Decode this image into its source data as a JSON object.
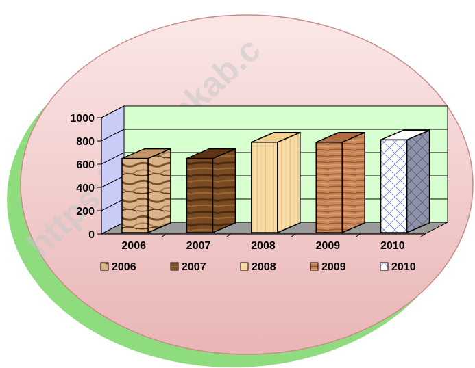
{
  "watermark": "https://koltimkab.c",
  "colors": {
    "disc_fill": "#f4cfcf",
    "disc_shadow": "#8fdc7e",
    "disc_stroke": "#c98a8a",
    "back_wall": "#d8ffd0",
    "side_wall": "#c8ccf6",
    "floor": "#9a9a9a"
  },
  "chart_data": {
    "type": "bar",
    "title": "",
    "xlabel": "",
    "ylabel": "",
    "ylim": [
      0,
      1000
    ],
    "yticks": [
      "0",
      "200",
      "400",
      "600",
      "800",
      "1000"
    ],
    "categories": [
      "2006",
      "2007",
      "2008",
      "2009",
      "2010"
    ],
    "values": [
      720,
      720,
      860,
      860,
      880
    ],
    "grid": true,
    "legend_position": "bottom",
    "series": [
      {
        "name": "2006",
        "color": "#d9b48a",
        "pattern": "wood-light"
      },
      {
        "name": "2007",
        "color": "#7a4a22",
        "pattern": "wood-dark"
      },
      {
        "name": "2008",
        "color": "#f7dca6",
        "pattern": "oak"
      },
      {
        "name": "2009",
        "color": "#c8865a",
        "pattern": "grain"
      },
      {
        "name": "2010",
        "color": "#cfd6ff",
        "pattern": "lattice"
      }
    ]
  }
}
